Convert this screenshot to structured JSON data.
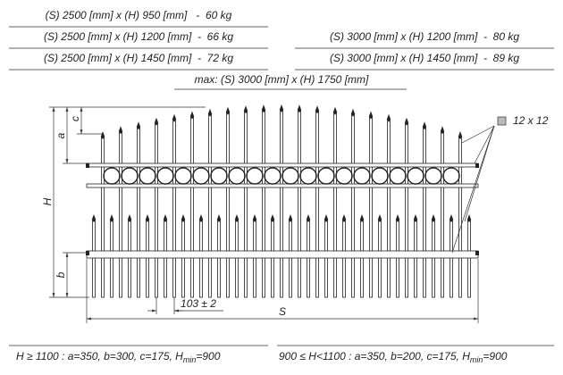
{
  "weights_left": [
    "(S) 2500 [mm] x (H) 950 [mm]   -  60 kg",
    "(S) 2500 [mm] x (H) 1200 [mm]  -  66 kg",
    "(S) 2500 [mm] x (H) 1450 [mm]  -  72 kg"
  ],
  "weights_right": [
    "(S) 3000 [mm] x (H) 1200 [mm]  -  80 kg",
    "(S) 3000 [mm] x (H) 1450 [mm]  -  89 kg"
  ],
  "max_size": "max: (S) 3000 [mm] x (H) 1750 [mm]",
  "dimensions": {
    "c": "c",
    "a": "a",
    "H": "H",
    "b": "b",
    "spacing": "103 ± 2",
    "S": "S"
  },
  "profile": "12 x 12",
  "conditions": [
    {
      "text": "H ≥ 1100 : a=350, b=300, c=175, H",
      "sub": "min",
      "tail": "=900"
    },
    {
      "text": "900 ≤ H<1100 : a=350, b=200, c=175, H",
      "sub": "min",
      "tail": "=900"
    }
  ]
}
